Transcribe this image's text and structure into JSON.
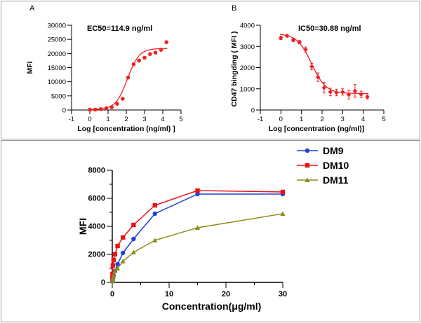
{
  "chart_data": [
    {
      "id": "A",
      "type": "scatter",
      "panel_label": "A",
      "title": "",
      "annotation": "EC50=114.9 ng/ml",
      "xlabel": "Log [concentration (ng/ml) ]",
      "ylabel": "MFI",
      "xlim": [
        -1,
        5
      ],
      "ylim": [
        0,
        30000
      ],
      "xticks": [
        -1,
        0,
        1,
        2,
        3,
        4,
        5
      ],
      "yticks": [
        0,
        5000,
        10000,
        15000,
        20000,
        25000,
        30000
      ],
      "xtick_labels": [
        "-1",
        "0",
        "1",
        "2",
        "3",
        "4",
        "5"
      ],
      "ytick_labels": [
        "0",
        "5000",
        "10000",
        "15000",
        "20000",
        "25000",
        "30000"
      ],
      "color": "#ee2222",
      "fit": {
        "model": "4PL",
        "bottom": 150,
        "top": 21800,
        "logEC50": 2.06,
        "hill": 1.35
      },
      "series": [
        {
          "name": "MFI",
          "x": [
            0,
            0.3,
            0.6,
            0.9,
            1.2,
            1.5,
            1.8,
            2.1,
            2.4,
            2.7,
            3.0,
            3.3,
            3.6,
            3.9,
            4.2
          ],
          "y": [
            100,
            150,
            300,
            600,
            1000,
            2200,
            4000,
            11500,
            16200,
            17500,
            18500,
            19800,
            20300,
            21300,
            24000
          ]
        }
      ]
    },
    {
      "id": "B",
      "type": "scatter",
      "panel_label": "B",
      "title": "",
      "annotation": "IC50=30.88 ng/ml",
      "xlabel": "Log  [concentration (ng/ml)]",
      "ylabel": "CD47 bingding ( MFI )",
      "xlim": [
        -1,
        5
      ],
      "ylim": [
        0,
        4000
      ],
      "xticks": [
        -1,
        0,
        1,
        2,
        3,
        4,
        5
      ],
      "yticks": [
        0,
        1000,
        2000,
        3000,
        4000
      ],
      "xtick_labels": [
        "-1",
        "0",
        "1",
        "2",
        "3",
        "4",
        "5"
      ],
      "ytick_labels": [
        "0",
        "1000",
        "2000",
        "3000",
        "4000"
      ],
      "color": "#ee2222",
      "fit": {
        "model": "4PL",
        "bottom": 780,
        "top": 3600,
        "logIC50": 1.49,
        "hill": -1.25
      },
      "series": [
        {
          "name": "CD47 binding",
          "x": [
            0,
            0.3,
            0.6,
            0.9,
            1.2,
            1.5,
            1.8,
            2.1,
            2.4,
            2.7,
            3.0,
            3.3,
            3.6,
            3.9,
            4.2
          ],
          "y": [
            3400,
            3500,
            3300,
            3200,
            2850,
            2050,
            1550,
            1050,
            850,
            820,
            850,
            720,
            900,
            740,
            620
          ],
          "err": [
            80,
            60,
            80,
            80,
            120,
            150,
            200,
            250,
            180,
            150,
            150,
            200,
            300,
            150,
            100
          ]
        }
      ]
    },
    {
      "id": "C",
      "type": "line",
      "title": "",
      "xlabel": "Concentration(μg/ml)",
      "ylabel": "MFI",
      "xlim": [
        0,
        30
      ],
      "ylim": [
        0,
        8000
      ],
      "xticks": [
        0,
        10,
        20,
        30
      ],
      "yticks": [
        0,
        2000,
        4000,
        6000,
        8000
      ],
      "xtick_labels": [
        "0",
        "10",
        "20",
        "30"
      ],
      "ytick_labels": [
        "0",
        "2000",
        "4000",
        "6000",
        "8000"
      ],
      "legend_position": "top-right",
      "x": [
        0.029,
        0.059,
        0.117,
        0.234,
        0.469,
        0.938,
        1.875,
        3.75,
        7.5,
        15,
        30
      ],
      "series": [
        {
          "name": "DM9",
          "marker": "circle",
          "color": "#1f3fe0",
          "values": [
            80,
            150,
            300,
            500,
            800,
            1300,
            2100,
            3100,
            4900,
            6300,
            6300
          ]
        },
        {
          "name": "DM10",
          "marker": "square",
          "color": "#ee1111",
          "values": [
            300,
            600,
            1200,
            1600,
            2000,
            2600,
            3200,
            4100,
            5500,
            6550,
            6450
          ]
        },
        {
          "name": "DM11",
          "marker": "triangle",
          "color": "#8c8c1f",
          "values": [
            80,
            150,
            300,
            500,
            800,
            1000,
            1500,
            2150,
            3000,
            3900,
            4900
          ]
        }
      ]
    }
  ]
}
